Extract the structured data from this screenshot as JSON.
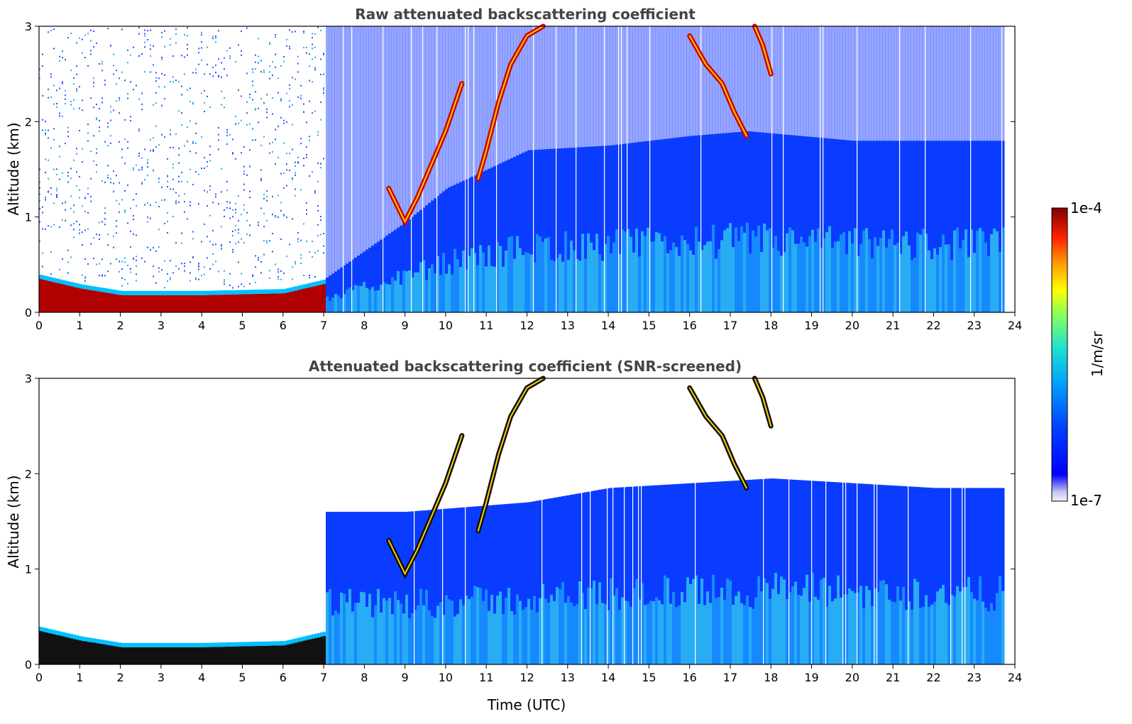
{
  "figure": {
    "xlabel": "Time (UTC)",
    "colorbar": {
      "label": "1/m/sr",
      "max_label": "1e-4",
      "min_label": "1e-7",
      "scale": "log",
      "range": [
        1e-07,
        0.0001
      ],
      "colormap": [
        "#ffffff",
        "#d6d6f5",
        "#9a9aee",
        "#0000ff",
        "#0060ff",
        "#00c0ff",
        "#20e0c0",
        "#80ff60",
        "#ffff00",
        "#ffa000",
        "#ff3000",
        "#c00000",
        "#800000"
      ]
    }
  },
  "chart_data": [
    {
      "type": "heatmap",
      "title": "Raw attenuated backscattering coefficient",
      "xlabel": "",
      "ylabel": "Altitude (km)",
      "xlim": [
        0,
        24
      ],
      "ylim": [
        0,
        3
      ],
      "x_ticks": [
        "0",
        "1",
        "2",
        "3",
        "4",
        "5",
        "6",
        "7",
        "8",
        "9",
        "10",
        "11",
        "12",
        "13",
        "14",
        "15",
        "16",
        "17",
        "18",
        "19",
        "20",
        "21",
        "22",
        "23",
        "24"
      ],
      "y_ticks": [
        "0",
        "1",
        "2",
        "3"
      ],
      "features": {
        "night_surface_layer_top_km": [
          [
            0,
            0.35
          ],
          [
            1.0,
            0.25
          ],
          [
            2.0,
            0.18
          ],
          [
            4.0,
            0.18
          ],
          [
            6.0,
            0.2
          ],
          [
            7.0,
            0.3
          ]
        ],
        "boundary_layer_top_km": [
          [
            7.0,
            0.35
          ],
          [
            9.0,
            0.95
          ],
          [
            10.0,
            1.3
          ],
          [
            12.0,
            1.7
          ],
          [
            14.0,
            1.75
          ],
          [
            16.0,
            1.85
          ],
          [
            17.4,
            1.9
          ],
          [
            20.0,
            1.8
          ],
          [
            23.8,
            1.8
          ]
        ],
        "cloud_tracks": [
          {
            "time": [
              8.6,
              9.0,
              9.3,
              9.6,
              10.0,
              10.4
            ],
            "alt_km": [
              1.3,
              0.95,
              1.2,
              1.5,
              1.9,
              2.4
            ]
          },
          {
            "time": [
              10.8,
              11.0,
              11.3,
              11.6,
              12.0,
              12.4
            ],
            "alt_km": [
              1.4,
              1.7,
              2.2,
              2.6,
              2.9,
              3.0
            ]
          },
          {
            "time": [
              16.0,
              16.4,
              16.8,
              17.1,
              17.4
            ],
            "alt_km": [
              2.9,
              2.6,
              2.4,
              2.1,
              1.85
            ]
          },
          {
            "time": [
              17.6,
              17.8,
              18.0
            ],
            "alt_km": [
              3.0,
              2.8,
              2.5
            ]
          }
        ],
        "data_end_hour": 23.8
      }
    },
    {
      "type": "heatmap",
      "title": "Attenuated backscattering coefficient (SNR-screened)",
      "xlabel": "Time (UTC)",
      "ylabel": "Altitude (km)",
      "xlim": [
        0,
        24
      ],
      "ylim": [
        0,
        3
      ],
      "x_ticks": [
        "0",
        "1",
        "2",
        "3",
        "4",
        "5",
        "6",
        "7",
        "8",
        "9",
        "10",
        "11",
        "12",
        "13",
        "14",
        "15",
        "16",
        "17",
        "18",
        "19",
        "20",
        "21",
        "22",
        "23",
        "24"
      ],
      "y_ticks": [
        "0",
        "1",
        "2",
        "3"
      ],
      "features": {
        "screened_top_km": [
          [
            7.0,
            1.6
          ],
          [
            9.0,
            1.6
          ],
          [
            12.0,
            1.7
          ],
          [
            14.0,
            1.85
          ],
          [
            16.0,
            1.9
          ],
          [
            18.0,
            1.95
          ],
          [
            20.0,
            1.9
          ],
          [
            22.0,
            1.85
          ],
          [
            23.8,
            1.85
          ]
        ],
        "data_end_hour": 23.8
      }
    }
  ]
}
